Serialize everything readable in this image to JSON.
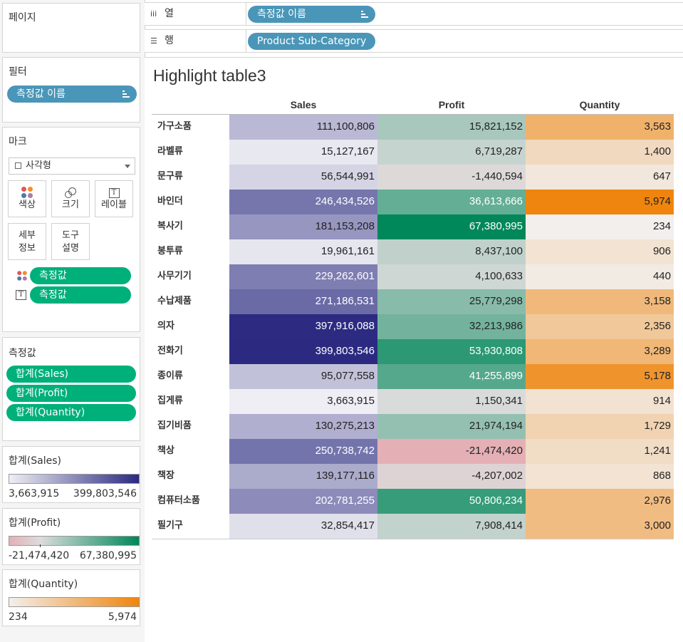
{
  "left_panel": {
    "pages": {
      "title": "페이지"
    },
    "filters": {
      "title": "필터",
      "pill": "측정값 이름"
    },
    "marks": {
      "title": "마크",
      "mark_type": "사각형",
      "buttons": {
        "color": "색상",
        "size": "크기",
        "label": "레이블",
        "detail": [
          "세부",
          "정보"
        ],
        "tooltip": [
          "도구",
          "설명"
        ]
      },
      "pills": [
        "측정값",
        "측정값"
      ]
    },
    "measure_values": {
      "title": "측정값",
      "pills": [
        "합계(Sales)",
        "합계(Profit)",
        "합계(Quantity)"
      ]
    },
    "legends": [
      {
        "title": "합계(Sales)",
        "min": "3,663,915",
        "max": "399,803,546",
        "color_low": "#eeeef4",
        "color_high": "#2b2a80"
      },
      {
        "title": "합계(Profit)",
        "min": "-21,474,420",
        "max": "67,380,995",
        "color_low": "#e4b0b5",
        "color_mid": "#dcdcdc",
        "color_high": "#00875a"
      },
      {
        "title": "합계(Quantity)",
        "min": "234",
        "max": "5,974",
        "color_low": "#f2efec",
        "color_high": "#ef850e"
      }
    ]
  },
  "shelves": {
    "columns": {
      "label": "열",
      "pill": "측정값 이름"
    },
    "rows": {
      "label": "행",
      "pill": "Product Sub-Category"
    }
  },
  "viz": {
    "title": "Highlight table3",
    "columns": [
      "Sales",
      "Profit",
      "Quantity"
    ],
    "rows": [
      {
        "category": "가구소품",
        "sales": "111,100,806",
        "profit": "15,821,152",
        "quantity": "3,563"
      },
      {
        "category": "라벨류",
        "sales": "15,127,167",
        "profit": "6,719,287",
        "quantity": "1,400"
      },
      {
        "category": "문구류",
        "sales": "56,544,991",
        "profit": "-1,440,594",
        "quantity": "647"
      },
      {
        "category": "바인더",
        "sales": "246,434,526",
        "profit": "36,613,666",
        "quantity": "5,974"
      },
      {
        "category": "복사기",
        "sales": "181,153,208",
        "profit": "67,380,995",
        "quantity": "234"
      },
      {
        "category": "봉투류",
        "sales": "19,961,161",
        "profit": "8,437,100",
        "quantity": "906"
      },
      {
        "category": "사무기기",
        "sales": "229,262,601",
        "profit": "4,100,633",
        "quantity": "440"
      },
      {
        "category": "수납제품",
        "sales": "271,186,531",
        "profit": "25,779,298",
        "quantity": "3,158"
      },
      {
        "category": "의자",
        "sales": "397,916,088",
        "profit": "32,213,986",
        "quantity": "2,356"
      },
      {
        "category": "전화기",
        "sales": "399,803,546",
        "profit": "53,930,808",
        "quantity": "3,289"
      },
      {
        "category": "종이류",
        "sales": "95,077,558",
        "profit": "41,255,899",
        "quantity": "5,178"
      },
      {
        "category": "집게류",
        "sales": "3,663,915",
        "profit": "1,150,341",
        "quantity": "914"
      },
      {
        "category": "집기비품",
        "sales": "130,275,213",
        "profit": "21,974,194",
        "quantity": "1,729"
      },
      {
        "category": "책상",
        "sales": "250,738,742",
        "profit": "-21,474,420",
        "quantity": "1,241"
      },
      {
        "category": "책장",
        "sales": "139,177,116",
        "profit": "-4,207,002",
        "quantity": "868"
      },
      {
        "category": "컴퓨터소품",
        "sales": "202,781,255",
        "profit": "50,806,234",
        "quantity": "2,976"
      },
      {
        "category": "필기구",
        "sales": "32,854,417",
        "profit": "7,908,414",
        "quantity": "3,000"
      }
    ]
  }
}
